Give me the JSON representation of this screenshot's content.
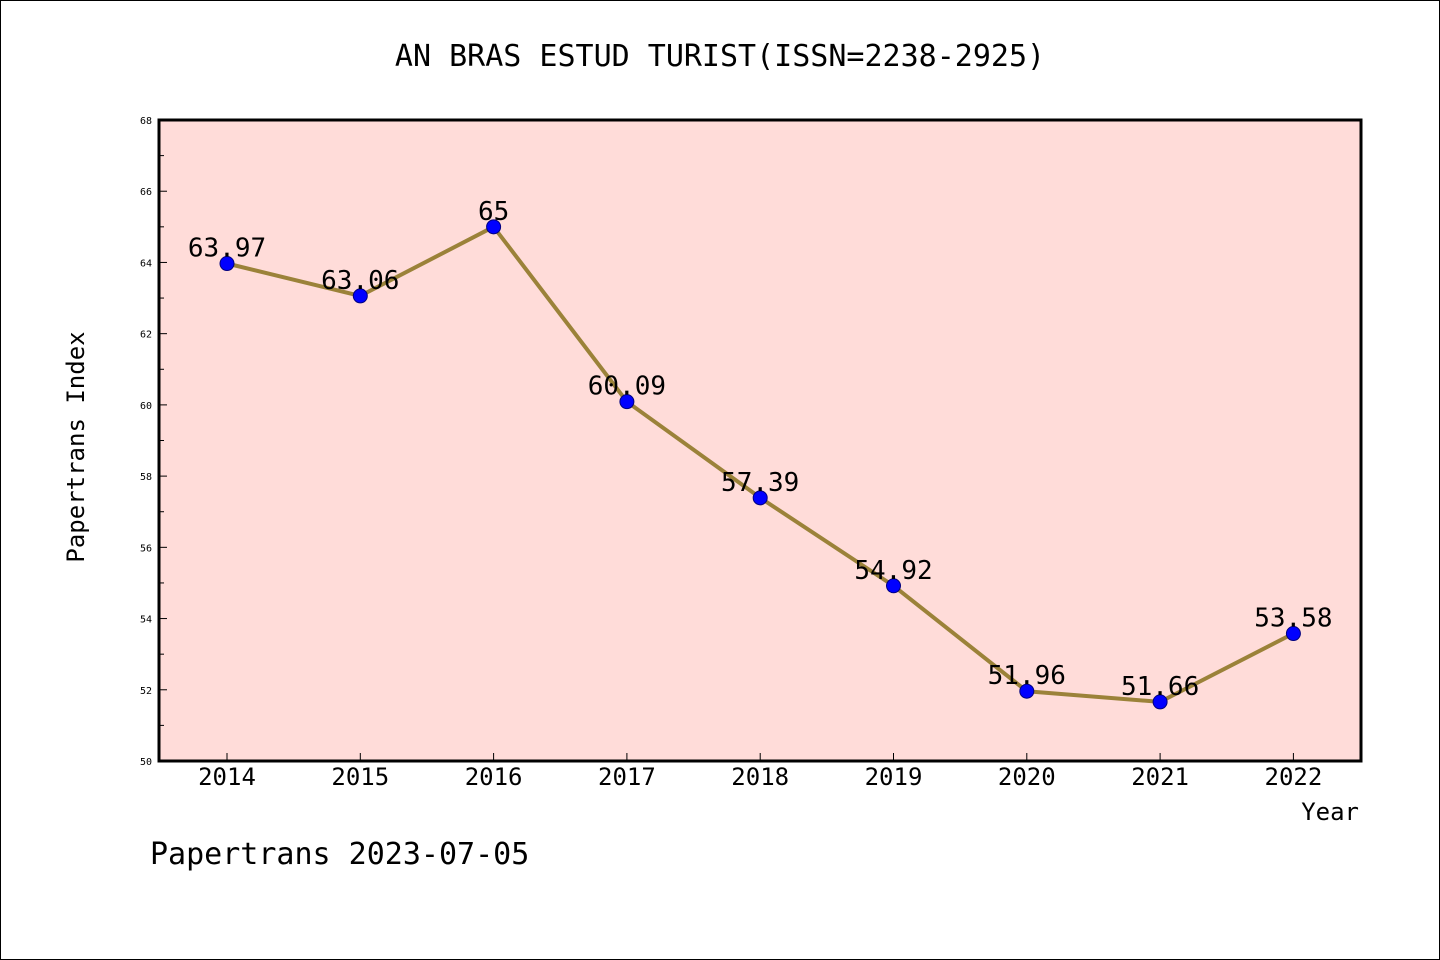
{
  "chart_data": {
    "type": "line",
    "title": "AN BRAS ESTUD TURIST(ISSN=2238-2925)",
    "xlabel": "Year",
    "ylabel": "Papertrans Index",
    "categories": [
      "2014",
      "2015",
      "2016",
      "2017",
      "2018",
      "2019",
      "2020",
      "2021",
      "2022"
    ],
    "values": [
      63.97,
      63.06,
      65,
      60.09,
      57.39,
      54.92,
      51.96,
      51.66,
      53.58
    ],
    "data_labels": [
      "63.97",
      "63.06",
      "65",
      "60.09",
      "57.39",
      "54.92",
      "51.96",
      "51.66",
      "53.58"
    ],
    "ylim": [
      50,
      68
    ],
    "yticks": [
      "50",
      "52",
      "54",
      "56",
      "58",
      "60",
      "62",
      "64",
      "66",
      "68"
    ],
    "grid": false,
    "colors": {
      "plot_background": "#ffdcd9",
      "line": "#9b8239",
      "marker": "#0000ff",
      "marker_edge": "#000080"
    }
  },
  "footer": "Papertrans 2023-07-05"
}
